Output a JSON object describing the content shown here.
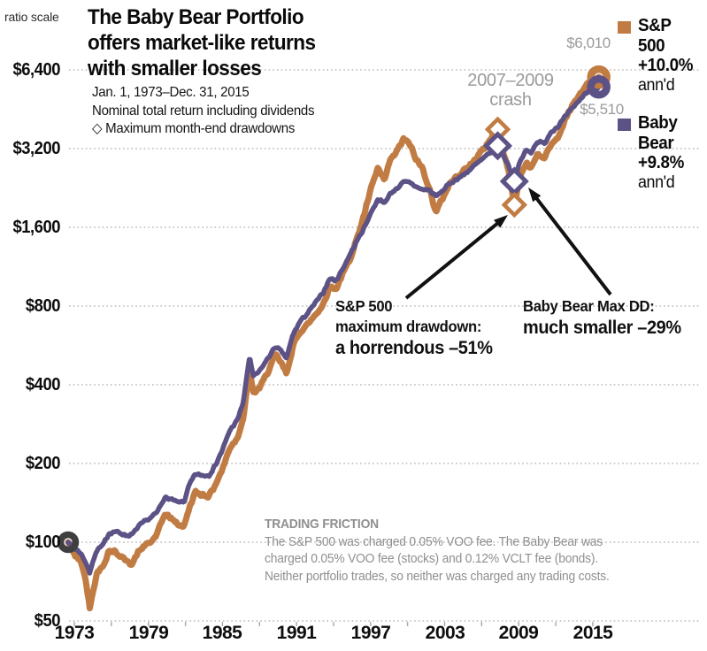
{
  "header": {
    "axis_note": "ratio scale",
    "title_lines": [
      "The Baby Bear Portfolio",
      "offers market-like returns",
      "with smaller losses"
    ],
    "subtitle_lines": [
      "Jan. 1, 1973–Dec. 31, 2015",
      "Nominal total return including dividends",
      "◇ Maximum month-end drawdowns"
    ]
  },
  "legend": {
    "sp": {
      "name_lines": [
        "S&P",
        "500"
      ],
      "return": "+10.0%",
      "annd": "ann'd",
      "color": "#c17c43"
    },
    "bb": {
      "name_lines": [
        "Baby",
        "Bear"
      ],
      "return": "+9.8%",
      "annd": "ann'd",
      "color": "#5d5286"
    }
  },
  "annotations": {
    "crash_lines": [
      "2007–2009",
      "crash"
    ],
    "sp_end_value": "$6,010",
    "bb_end_value": "$5,510",
    "sp_drawdown": {
      "line1": "S&P 500",
      "line2": "maximum drawdown:",
      "line3": "a horrendous –51%"
    },
    "bb_drawdown": {
      "line1": "Baby Bear Max DD:",
      "line2": "much smaller –29%"
    }
  },
  "footnote": {
    "heading": "TRADING FRICTION",
    "lines": [
      "The S&P 500 was charged 0.05% VOO fee. The Baby Bear was",
      "charged 0.05% VOO fee (stocks) and 0.12% VCLT fee (bonds).",
      "Neither portfolio trades, so neither was charged any trading costs."
    ]
  },
  "chart_data": {
    "type": "line",
    "scale": "log2 ratio scale, growth of $100",
    "title": "The Baby Bear Portfolio offers market-like returns with smaller losses",
    "period": "Jan. 1, 1973–Dec. 31, 2015",
    "x_range": [
      1973,
      2016
    ],
    "ylim": [
      50,
      6400
    ],
    "grid": "dotted horizontal",
    "legend_position": "right",
    "y_ticks": [
      {
        "label": "$6,400",
        "value": 6400
      },
      {
        "label": "$3,200",
        "value": 3200
      },
      {
        "label": "$1,600",
        "value": 1600
      },
      {
        "label": "$800",
        "value": 800
      },
      {
        "label": "$400",
        "value": 400
      },
      {
        "label": "$200",
        "value": 200
      },
      {
        "label": "$100",
        "value": 100
      },
      {
        "label": "$50",
        "value": 50
      }
    ],
    "x_ticks": [
      {
        "label": "1973",
        "year": 1973
      },
      {
        "label": "1979",
        "year": 1979
      },
      {
        "label": "1985",
        "year": 1985
      },
      {
        "label": "1991",
        "year": 1991
      },
      {
        "label": "1997",
        "year": 1997
      },
      {
        "label": "2003",
        "year": 2003
      },
      {
        "label": "2009",
        "year": 2009
      },
      {
        "label": "2015",
        "year": 2015
      }
    ],
    "minor_tick_step_years": 3,
    "pin_years": [
      1973.0,
      2007.8,
      2009.15,
      2015.99
    ],
    "series": [
      {
        "id": "sp",
        "name": "S&P 500",
        "annualized_return": "+10.0% ann'd",
        "final_value": 6010,
        "color": "#c17c43",
        "stroke_width": 7,
        "points": [
          [
            1973.0,
            100
          ],
          [
            1973.3,
            95
          ],
          [
            1973.6,
            88
          ],
          [
            1973.9,
            86
          ],
          [
            1974.2,
            80
          ],
          [
            1974.5,
            68
          ],
          [
            1974.75,
            56
          ],
          [
            1975.0,
            65
          ],
          [
            1975.4,
            78
          ],
          [
            1975.8,
            80
          ],
          [
            1976.3,
            93
          ],
          [
            1976.8,
            92
          ],
          [
            1977.3,
            88
          ],
          [
            1977.8,
            84
          ],
          [
            1978.2,
            83
          ],
          [
            1978.7,
            92
          ],
          [
            1979.2,
            97
          ],
          [
            1979.7,
            100
          ],
          [
            1980.2,
            107
          ],
          [
            1980.8,
            128
          ],
          [
            1981.3,
            124
          ],
          [
            1981.9,
            117
          ],
          [
            1982.4,
            115
          ],
          [
            1982.8,
            135
          ],
          [
            1983.3,
            155
          ],
          [
            1983.9,
            152
          ],
          [
            1984.4,
            150
          ],
          [
            1984.9,
            165
          ],
          [
            1985.5,
            190
          ],
          [
            1986.1,
            230
          ],
          [
            1986.7,
            250
          ],
          [
            1987.2,
            300
          ],
          [
            1987.7,
            455
          ],
          [
            1988.0,
            370
          ],
          [
            1988.5,
            390
          ],
          [
            1989.0,
            430
          ],
          [
            1989.8,
            520
          ],
          [
            1990.2,
            490
          ],
          [
            1990.7,
            440
          ],
          [
            1991.2,
            560
          ],
          [
            1991.8,
            640
          ],
          [
            1992.4,
            680
          ],
          [
            1993.0,
            740
          ],
          [
            1993.6,
            800
          ],
          [
            1994.2,
            950
          ],
          [
            1994.7,
            930
          ],
          [
            1995.2,
            1050
          ],
          [
            1995.8,
            1200
          ],
          [
            1996.4,
            1450
          ],
          [
            1997.0,
            1800
          ],
          [
            1997.6,
            2300
          ],
          [
            1998.1,
            2700
          ],
          [
            1998.6,
            2400
          ],
          [
            1999.1,
            2900
          ],
          [
            1999.6,
            3100
          ],
          [
            2000.2,
            3500
          ],
          [
            2000.7,
            3300
          ],
          [
            2001.2,
            2900
          ],
          [
            2001.7,
            2700
          ],
          [
            2002.2,
            2300
          ],
          [
            2002.8,
            1830
          ],
          [
            2003.3,
            2050
          ],
          [
            2003.9,
            2350
          ],
          [
            2004.5,
            2500
          ],
          [
            2005.1,
            2650
          ],
          [
            2005.7,
            2800
          ],
          [
            2006.3,
            3050
          ],
          [
            2006.9,
            3300
          ],
          [
            2007.4,
            3600
          ],
          [
            2007.8,
            3790
          ],
          [
            2008.2,
            3200
          ],
          [
            2008.7,
            2600
          ],
          [
            2009.15,
            1950
          ],
          [
            2009.6,
            2500
          ],
          [
            2010.1,
            2800
          ],
          [
            2010.5,
            2700
          ],
          [
            2011.0,
            3050
          ],
          [
            2011.6,
            2950
          ],
          [
            2012.1,
            3300
          ],
          [
            2012.7,
            3550
          ],
          [
            2013.3,
            4150
          ],
          [
            2013.9,
            4750
          ],
          [
            2014.5,
            5150
          ],
          [
            2015.0,
            5650
          ],
          [
            2015.4,
            5800
          ],
          [
            2015.7,
            5550
          ],
          [
            2015.99,
            6010
          ]
        ]
      },
      {
        "id": "bb",
        "name": "Baby Bear",
        "annualized_return": "+9.8% ann'd",
        "final_value": 5510,
        "color": "#5d5286",
        "stroke_width": 5.5,
        "points": [
          [
            1973.0,
            100
          ],
          [
            1973.3,
            97
          ],
          [
            1973.6,
            94
          ],
          [
            1973.9,
            92
          ],
          [
            1974.2,
            88
          ],
          [
            1974.5,
            82
          ],
          [
            1974.75,
            76
          ],
          [
            1975.0,
            85
          ],
          [
            1975.4,
            94
          ],
          [
            1975.8,
            97
          ],
          [
            1976.3,
            108
          ],
          [
            1976.8,
            110
          ],
          [
            1977.3,
            108
          ],
          [
            1977.8,
            106
          ],
          [
            1978.2,
            107
          ],
          [
            1978.7,
            115
          ],
          [
            1979.2,
            120
          ],
          [
            1979.7,
            124
          ],
          [
            1980.2,
            130
          ],
          [
            1980.8,
            148
          ],
          [
            1981.3,
            146
          ],
          [
            1981.9,
            142
          ],
          [
            1982.4,
            143
          ],
          [
            1982.8,
            165
          ],
          [
            1983.3,
            182
          ],
          [
            1983.9,
            180
          ],
          [
            1984.4,
            180
          ],
          [
            1984.9,
            196
          ],
          [
            1985.5,
            225
          ],
          [
            1986.1,
            268
          ],
          [
            1986.7,
            292
          ],
          [
            1987.2,
            345
          ],
          [
            1987.7,
            515
          ],
          [
            1988.0,
            430
          ],
          [
            1988.5,
            450
          ],
          [
            1989.0,
            490
          ],
          [
            1989.8,
            560
          ],
          [
            1990.2,
            540
          ],
          [
            1990.7,
            505
          ],
          [
            1991.2,
            620
          ],
          [
            1991.8,
            700
          ],
          [
            1992.4,
            750
          ],
          [
            1993.0,
            820
          ],
          [
            1993.6,
            890
          ],
          [
            1994.2,
            1020
          ],
          [
            1994.7,
            1000
          ],
          [
            1995.2,
            1100
          ],
          [
            1995.8,
            1250
          ],
          [
            1996.4,
            1420
          ],
          [
            1997.0,
            1600
          ],
          [
            1997.6,
            1850
          ],
          [
            1998.1,
            2050
          ],
          [
            1998.6,
            1980
          ],
          [
            1999.1,
            2150
          ],
          [
            1999.6,
            2250
          ],
          [
            2000.2,
            2380
          ],
          [
            2000.7,
            2380
          ],
          [
            2001.2,
            2280
          ],
          [
            2001.7,
            2230
          ],
          [
            2002.2,
            2230
          ],
          [
            2002.8,
            2100
          ],
          [
            2003.3,
            2200
          ],
          [
            2003.9,
            2350
          ],
          [
            2004.5,
            2450
          ],
          [
            2005.1,
            2550
          ],
          [
            2005.7,
            2700
          ],
          [
            2006.3,
            2850
          ],
          [
            2006.9,
            3000
          ],
          [
            2007.4,
            3150
          ],
          [
            2007.8,
            3280
          ],
          [
            2008.2,
            3050
          ],
          [
            2008.7,
            2750
          ],
          [
            2009.15,
            2400
          ],
          [
            2009.6,
            2850
          ],
          [
            2010.1,
            3150
          ],
          [
            2010.5,
            3100
          ],
          [
            2011.0,
            3400
          ],
          [
            2011.6,
            3350
          ],
          [
            2012.1,
            3700
          ],
          [
            2012.7,
            3900
          ],
          [
            2013.3,
            4250
          ],
          [
            2013.9,
            4600
          ],
          [
            2014.5,
            4950
          ],
          [
            2015.0,
            5250
          ],
          [
            2015.4,
            5400
          ],
          [
            2015.7,
            5250
          ],
          [
            2015.99,
            5510
          ]
        ]
      }
    ],
    "start_marker": {
      "year": 1973.0,
      "value": 100,
      "color": "#3f3f3f"
    },
    "end_markers": [
      {
        "series": "sp",
        "year": 2015.99,
        "value": 6010,
        "label": "$6,010"
      },
      {
        "series": "bb",
        "year": 2015.99,
        "value": 5510,
        "label": "$5,510"
      }
    ],
    "drawdown_markers": [
      {
        "series": "sp",
        "year": 2007.8,
        "value": 3790,
        "kind": "pre-crash peak"
      },
      {
        "series": "bb",
        "year": 2007.8,
        "value": 3280,
        "kind": "pre-crash peak"
      },
      {
        "series": "bb",
        "year": 2009.15,
        "value": 2400,
        "kind": "max drawdown trough (-29%)"
      },
      {
        "series": "sp",
        "year": 2009.15,
        "value": 1950,
        "kind": "max drawdown trough (-51%)"
      }
    ]
  }
}
